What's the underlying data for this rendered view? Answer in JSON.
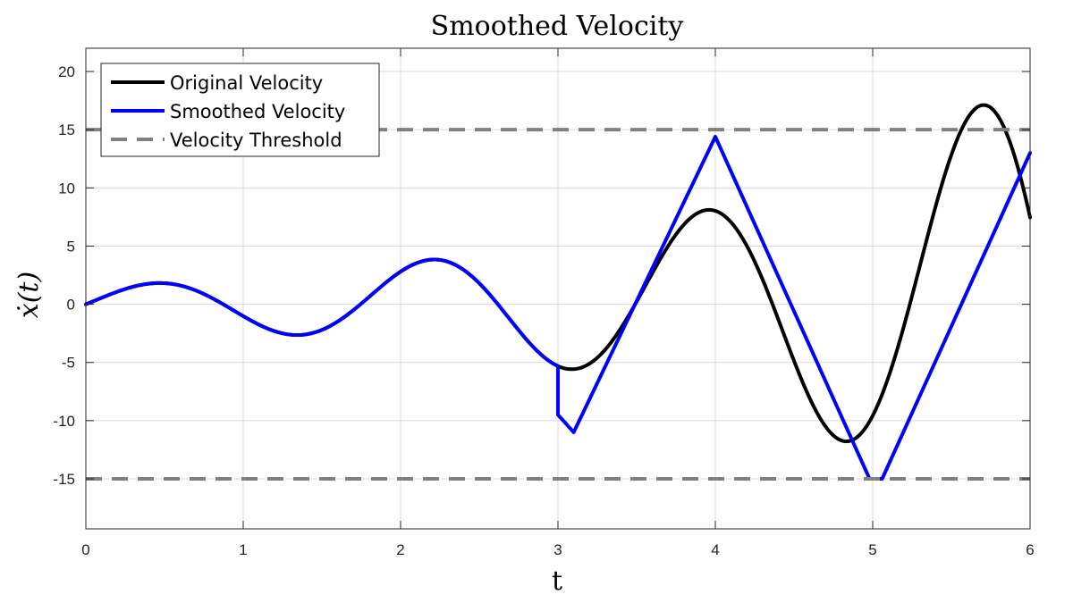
{
  "chart_data": {
    "type": "line",
    "title": "Smoothed Velocity",
    "xlabel": "t",
    "ylabel": "ẋ(t)",
    "xlim": [
      0,
      6
    ],
    "ylim": [
      -19.3,
      22
    ],
    "grid": true,
    "legend_position": "top-left",
    "x_ticks": [
      0,
      1,
      2,
      3,
      4,
      5,
      6
    ],
    "x_tick_labels": [
      "0",
      "1",
      "2",
      "3",
      "4",
      "5",
      "6"
    ],
    "y_ticks": [
      -15,
      -10,
      -5,
      0,
      5,
      10,
      15,
      20
    ],
    "y_tick_labels": [
      "-15",
      "-10",
      "-5",
      "0",
      "5",
      "10",
      "15",
      "20"
    ],
    "series": [
      {
        "name": "Original Velocity",
        "color": "#000000",
        "style": "solid",
        "generator": {
          "form": "a*exp(b*t)*sin(w*t)",
          "a": 1.5,
          "b": 0.428,
          "w": 3.6,
          "x_start": 0,
          "x_end": 6,
          "step": 0.01
        }
      },
      {
        "name": "Smoothed Velocity",
        "color": "#0000ff",
        "style": "solid",
        "x_from_original_until": 3.0,
        "points": [
          [
            3.0,
            -9.5
          ],
          [
            3.1,
            -11.0
          ],
          [
            4.0,
            14.4
          ],
          [
            4.98,
            -15.0
          ],
          [
            5.06,
            -15.0
          ],
          [
            6.0,
            13.0
          ]
        ]
      },
      {
        "name": "Velocity Threshold",
        "color": "#808080",
        "style": "dashed",
        "values": [
          15,
          -15
        ]
      }
    ]
  }
}
